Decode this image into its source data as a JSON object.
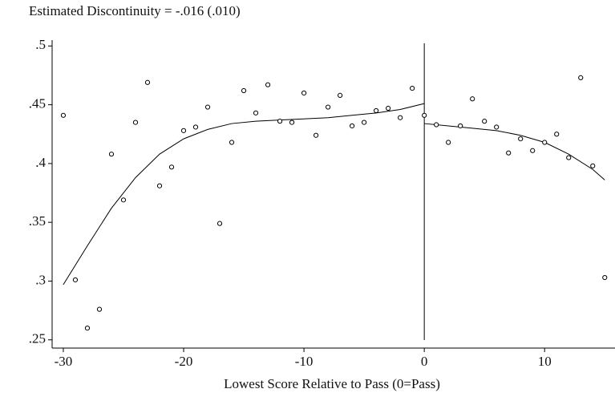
{
  "chart_data": {
    "type": "scatter",
    "title": "Estimated Discontinuity = -.016 (.010)",
    "xlabel": "Lowest Score Relative to Pass (0=Pass)",
    "x": [
      -30,
      -29,
      -28,
      -27,
      -26,
      -25,
      -24,
      -23,
      -22,
      -21,
      -20,
      -19,
      -18,
      -17,
      -16,
      -15,
      -14,
      -13,
      -12,
      -11,
      -10,
      -9,
      -8,
      -7,
      -6,
      -5,
      -4,
      -3,
      -2,
      -1,
      0,
      1,
      2,
      3,
      4,
      5,
      6,
      7,
      8,
      9,
      10,
      11,
      12,
      13,
      14,
      15
    ],
    "values": [
      0.441,
      0.301,
      0.26,
      0.276,
      0.408,
      0.369,
      0.435,
      0.469,
      0.381,
      0.397,
      0.428,
      0.431,
      0.448,
      0.349,
      0.418,
      0.462,
      0.443,
      0.467,
      0.436,
      0.435,
      0.46,
      0.424,
      0.448,
      0.458,
      0.432,
      0.435,
      0.445,
      0.447,
      0.439,
      0.464,
      0.441,
      0.433,
      0.418,
      0.432,
      0.455,
      0.436,
      0.431,
      0.409,
      0.421,
      0.411,
      0.418,
      0.425,
      0.405,
      0.473,
      0.398,
      0.303
    ],
    "fits": [
      {
        "x": [
          -30,
          -28,
          -26,
          -24,
          -22,
          -20,
          -18,
          -16,
          -14,
          -12,
          -10,
          -8,
          -6,
          -4,
          -2,
          0
        ],
        "values": [
          0.297,
          0.33,
          0.362,
          0.388,
          0.408,
          0.421,
          0.429,
          0.434,
          0.436,
          0.437,
          0.438,
          0.439,
          0.441,
          0.443,
          0.446,
          0.451
        ]
      },
      {
        "x": [
          0,
          2,
          4,
          6,
          8,
          10,
          12,
          14,
          15
        ],
        "values": [
          0.434,
          0.432,
          0.43,
          0.428,
          0.424,
          0.418,
          0.408,
          0.395,
          0.386
        ]
      }
    ],
    "cutoff": 0,
    "xlim": [
      -30.93,
      15.85
    ],
    "ylim": [
      0.243,
      0.505
    ],
    "xticks": [
      -30,
      -20,
      -10,
      0,
      10
    ],
    "yticks": [
      {
        "value": 0.25,
        "label": ".25"
      },
      {
        "value": 0.3,
        "label": ".3"
      },
      {
        "value": 0.35,
        "label": ".35"
      },
      {
        "value": 0.4,
        "label": ".4"
      },
      {
        "value": 0.45,
        "label": ".45"
      },
      {
        "value": 0.5,
        "label": ".5"
      }
    ]
  }
}
